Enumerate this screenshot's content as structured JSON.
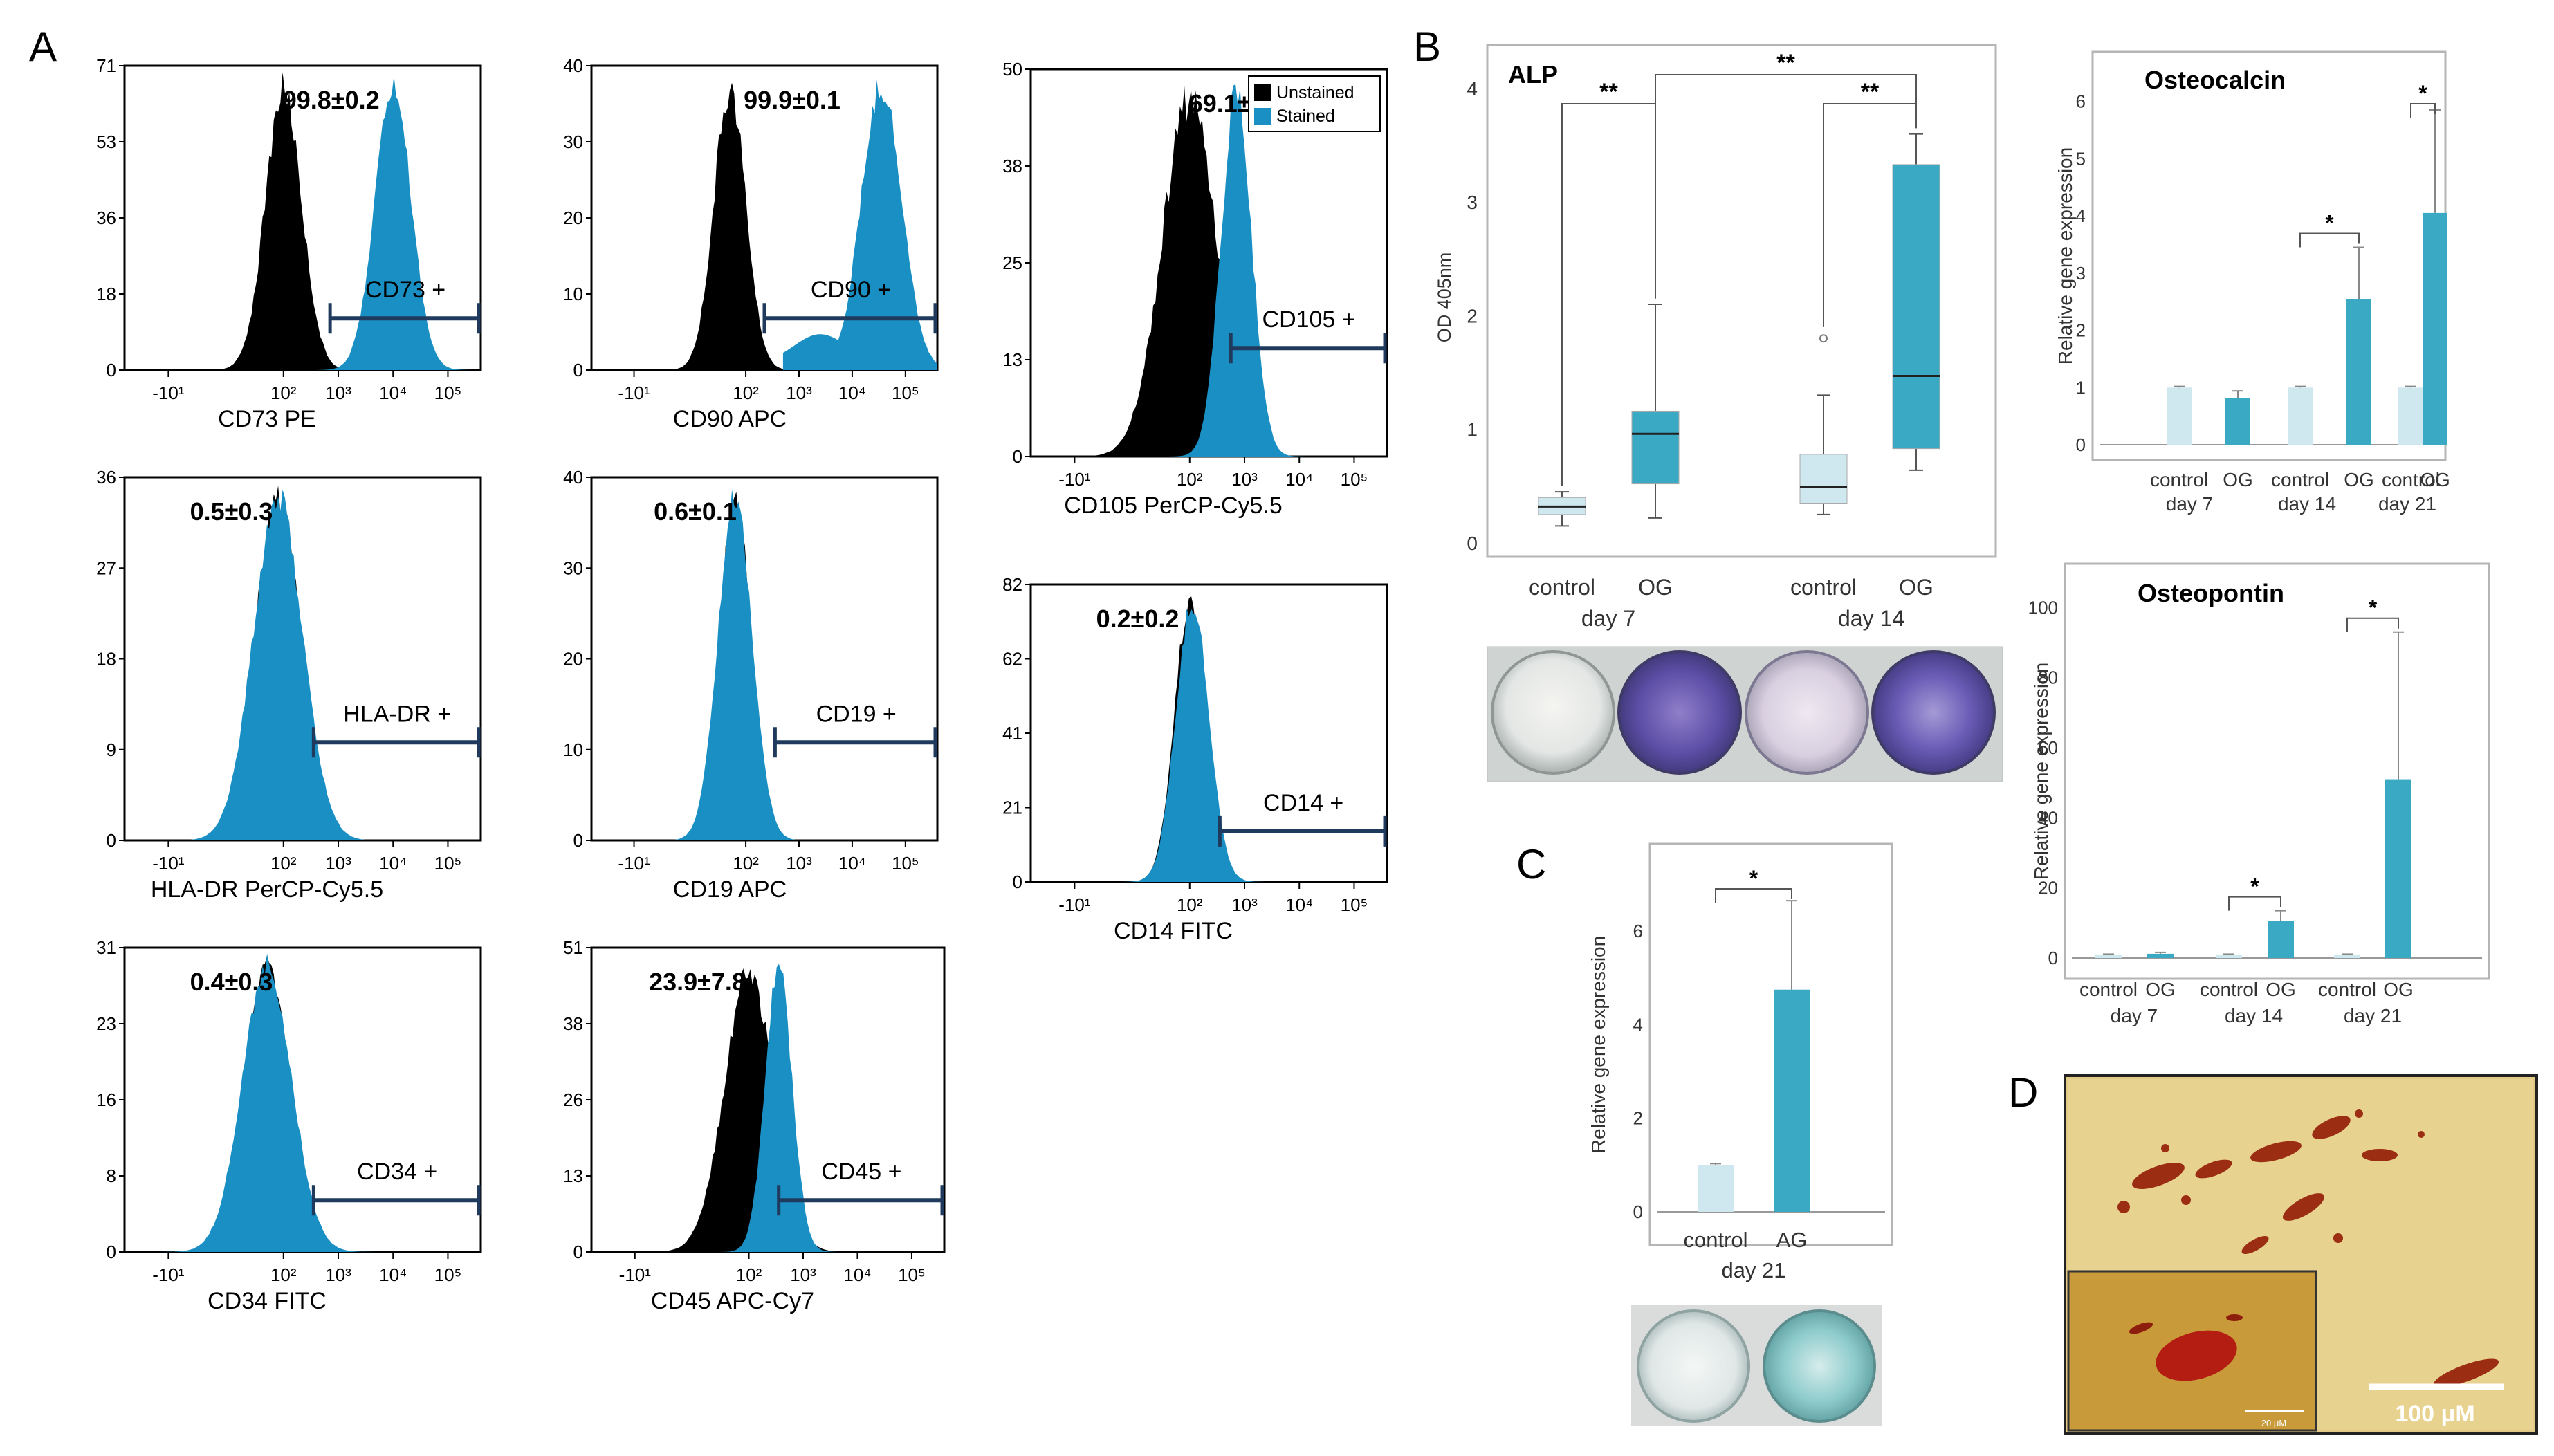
{
  "panel_letters": [
    "A",
    "B",
    "C",
    "D"
  ],
  "colors": {
    "unstained": "#000000",
    "stained": "#1a8fc4",
    "gate": "#1f3a5c",
    "bar_control": "#cfe7ef",
    "bar_treated": "#3aa9c4"
  },
  "flow": {
    "legend": [
      "Unstained",
      "Stained"
    ],
    "tick_labels_log": [
      "-10¹",
      "10²",
      "10³",
      "10⁴",
      "10⁵"
    ],
    "panels": [
      {
        "marker_label": "CD73 PE",
        "gate_label": "CD73 +",
        "percent": "99.8±0.2",
        "y_ticks": [
          "0",
          "18",
          "36",
          "53",
          "71"
        ],
        "unstained_peak": 2.0,
        "stained_peak": 4.0,
        "overlay": false,
        "stained_width": 0.33,
        "unstained_width": 0.33,
        "legend": false
      },
      {
        "marker_label": "CD90 APC",
        "gate_label": "CD90 +",
        "percent": "99.9±0.1",
        "y_ticks": [
          "0",
          "10",
          "20",
          "30",
          "40"
        ],
        "unstained_peak": 1.7,
        "stained_peak": 4.55,
        "overlay": false,
        "stained_width": 0.38,
        "unstained_width": 0.3,
        "legend": false
      },
      {
        "marker_label": "CD105 PerCP-Cy5.5",
        "gate_label": "CD105 +",
        "percent": "69.1±9.8",
        "y_ticks": [
          "0",
          "13",
          "25",
          "38",
          "50"
        ],
        "unstained_peak": 2.0,
        "stained_peak": 2.85,
        "overlay": false,
        "stained_width": 0.28,
        "unstained_width": 0.5,
        "legend": true
      },
      {
        "marker_label": "HLA-DR PerCP-Cy5.5",
        "gate_label": "HLA-DR +",
        "percent": "0.5±0.3",
        "y_ticks": [
          "0",
          "9",
          "18",
          "27",
          "36"
        ],
        "unstained_peak": 1.9,
        "stained_peak": 1.9,
        "overlay": true,
        "stained_width": 0.45,
        "unstained_width": 0.42,
        "legend": false
      },
      {
        "marker_label": "CD19 APC",
        "gate_label": "CD19 +",
        "percent": "0.6±0.1",
        "y_ticks": [
          "0",
          "10",
          "20",
          "30",
          "40"
        ],
        "unstained_peak": 1.8,
        "stained_peak": 1.8,
        "overlay": true,
        "stained_width": 0.32,
        "unstained_width": 0.3,
        "legend": false
      },
      {
        "marker_label": "CD14 FITC",
        "gate_label": "CD14 +",
        "percent": "0.2±0.2",
        "y_ticks": [
          "0",
          "21",
          "41",
          "62",
          "82"
        ],
        "unstained_peak": 2.0,
        "stained_peak": 2.05,
        "overlay": true,
        "stained_width": 0.3,
        "unstained_width": 0.28,
        "legend": false
      },
      {
        "marker_label": "CD34 FITC",
        "gate_label": "CD34 +",
        "percent": "0.4±0.3",
        "y_ticks": [
          "0",
          "8",
          "16",
          "23",
          "31"
        ],
        "unstained_peak": 1.7,
        "stained_peak": 1.7,
        "overlay": true,
        "stained_width": 0.45,
        "unstained_width": 0.42,
        "legend": false
      },
      {
        "marker_label": "CD45 APC-Cy7",
        "gate_label": "CD45 +",
        "percent": "23.9±7.8",
        "y_ticks": [
          "0",
          "13",
          "26",
          "38",
          "51"
        ],
        "unstained_peak": 2.0,
        "stained_peak": 2.55,
        "overlay": false,
        "stained_width": 0.25,
        "unstained_width": 0.45,
        "legend": false
      }
    ]
  },
  "chart_data": [
    {
      "type": "box",
      "title": "ALP",
      "ylabel": "OD 405nm",
      "ylim": [
        0,
        4.2
      ],
      "y_ticks": [
        "0",
        "1",
        "2",
        "3",
        "4"
      ],
      "categories": [
        "control",
        "OG",
        "control",
        "OG"
      ],
      "groups": [
        "day 7",
        "day 14"
      ],
      "boxes": [
        {
          "min": 0.15,
          "q1": 0.25,
          "median": 0.32,
          "q3": 0.4,
          "max": 0.45,
          "outliers": []
        },
        {
          "min": 0.22,
          "q1": 0.52,
          "median": 0.96,
          "q3": 1.16,
          "max": 2.1,
          "outliers": []
        },
        {
          "min": 0.25,
          "q1": 0.35,
          "median": 0.49,
          "q3": 0.78,
          "max": 1.3,
          "outliers": [
            1.8
          ]
        },
        {
          "min": 0.64,
          "q1": 0.83,
          "median": 1.47,
          "q3": 3.33,
          "max": 3.6,
          "outliers": []
        }
      ],
      "significance": [
        {
          "from": 0,
          "to": 1,
          "label": "**"
        },
        {
          "from": 1,
          "to": 3,
          "label": "**"
        },
        {
          "from": 2,
          "to": 3,
          "label": "**"
        }
      ]
    },
    {
      "type": "bar",
      "title": "Osteocalcin",
      "ylabel": "Relative gene expression",
      "ylim": [
        0,
        6.2
      ],
      "y_ticks": [
        "0",
        "1",
        "2",
        "3",
        "4",
        "5",
        "6"
      ],
      "categories": [
        "control",
        "OG",
        "control",
        "OG",
        "control",
        "OG"
      ],
      "groups": [
        "day 7",
        "day 14",
        "day 21"
      ],
      "values": [
        1.0,
        0.82,
        1.0,
        2.55,
        1.0,
        4.05
      ],
      "errors": [
        0.02,
        0.12,
        0.02,
        0.9,
        0.02,
        1.8
      ],
      "significance": [
        {
          "from": 2,
          "to": 3,
          "label": "*"
        },
        {
          "from": 4,
          "to": 5,
          "label": "*"
        }
      ]
    },
    {
      "type": "bar",
      "title": "Osteopontin",
      "ylabel": "Relative gene expression",
      "ylim": [
        0,
        104
      ],
      "y_ticks": [
        "0",
        "20",
        "40",
        "60",
        "80",
        "100"
      ],
      "categories": [
        "control",
        "OG",
        "control",
        "OG",
        "control",
        "OG"
      ],
      "groups": [
        "day 7",
        "day 14",
        "day 21"
      ],
      "values": [
        1.0,
        1.2,
        1.0,
        10.5,
        1.0,
        51
      ],
      "errors": [
        0.1,
        0.4,
        0.1,
        3.0,
        0.1,
        42
      ],
      "significance": [
        {
          "from": 2,
          "to": 3,
          "label": "*"
        },
        {
          "from": 4,
          "to": 5,
          "label": "*"
        }
      ]
    },
    {
      "type": "bar",
      "title": "",
      "ylabel": "Relative gene expression",
      "ylim": [
        0,
        7.2
      ],
      "y_ticks": [
        "0",
        "2",
        "4",
        "6"
      ],
      "categories": [
        "control",
        "AG"
      ],
      "groups": [
        "day 21"
      ],
      "values": [
        1.0,
        4.75
      ],
      "errors": [
        0.03,
        1.9
      ],
      "significance": [
        {
          "from": 0,
          "to": 1,
          "label": "*"
        }
      ]
    }
  ],
  "micrograph": {
    "scale_bar_main": "100 μM",
    "scale_bar_inset": "20 μM"
  }
}
